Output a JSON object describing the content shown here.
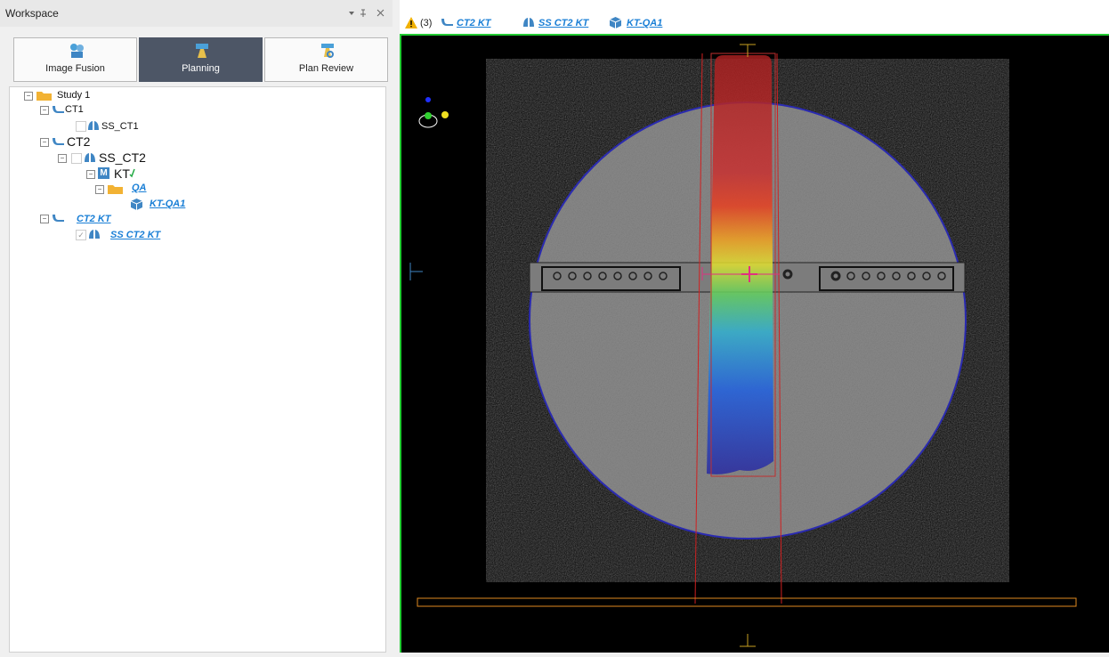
{
  "workspace": {
    "title": "Workspace",
    "tabs": [
      "Image Fusion",
      "Planning",
      "Plan Review"
    ],
    "tree": [
      "Study 1",
      "CT1",
      "SS_CT1",
      "CT2",
      "SS_CT2",
      "KT",
      "QA",
      "KT-QA1",
      "CT2 KT",
      "SS CT2 KT"
    ]
  },
  "viewer": {
    "warning": "(3)",
    "links": [
      "CT2 KT",
      "SS CT2 KT",
      "KT-QA1"
    ]
  }
}
